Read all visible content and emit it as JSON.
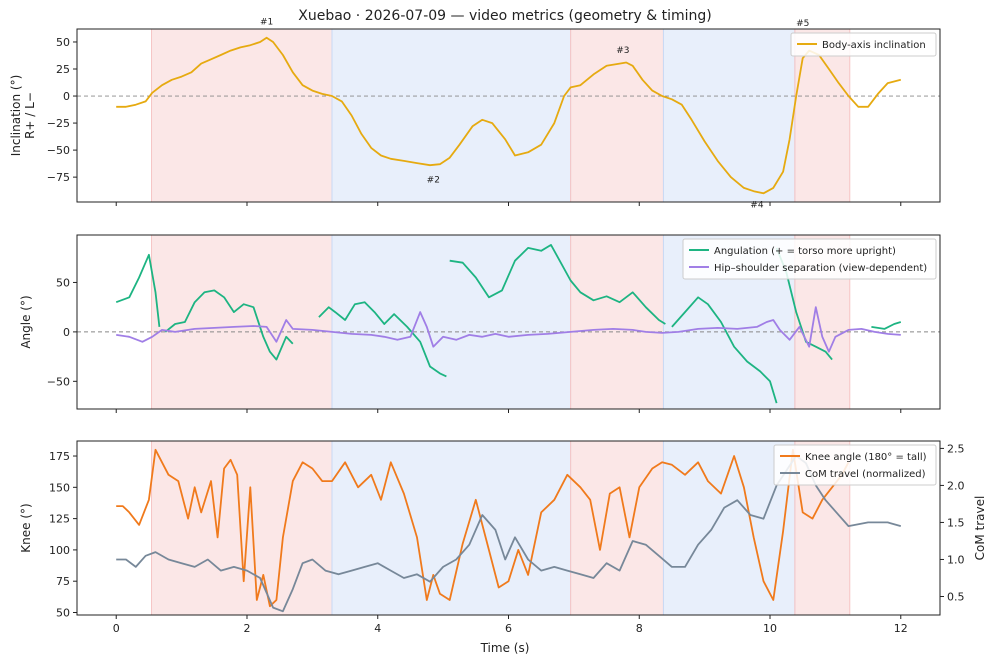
{
  "chart_data": {
    "type": "line",
    "title": "Xuebao · 2026-07-09 — video metrics (geometry & timing)",
    "xlabel": "Time (s)",
    "xlim": [
      -0.6,
      12.6
    ],
    "xticks": [
      0,
      2,
      4,
      6,
      8,
      10,
      12
    ],
    "phases": [
      {
        "start": 0.54,
        "end": 3.3,
        "color": "#f6c5c5"
      },
      {
        "start": 3.3,
        "end": 6.95,
        "color": "#c9daf5"
      },
      {
        "start": 6.95,
        "end": 8.37,
        "color": "#f6c5c5"
      },
      {
        "start": 8.37,
        "end": 10.38,
        "color": "#c9daf5"
      },
      {
        "start": 10.38,
        "end": 11.22,
        "color": "#f6c5c5"
      }
    ],
    "panels": [
      {
        "id": "inclination",
        "ylabel": [
          "Inclination (°)",
          "R+ / L−"
        ],
        "ylim": [
          -98,
          62
        ],
        "yticks": [
          50,
          25,
          0,
          -25,
          -50,
          -75
        ],
        "ytick_labels": [
          "50",
          "25",
          "0",
          "−25",
          "−50",
          "−75"
        ],
        "zero_line": true,
        "legend": "top-right",
        "annotations": [
          {
            "text": "#1",
            "x": 2.3,
            "y": 66
          },
          {
            "text": "#2",
            "x": 4.85,
            "y": -80
          },
          {
            "text": "#3",
            "x": 7.75,
            "y": 40
          },
          {
            "text": "#4",
            "x": 9.8,
            "y": -103
          },
          {
            "text": "#5",
            "x": 10.5,
            "y": 65
          }
        ],
        "series": [
          {
            "name": "Body-axis inclination",
            "color": "#e6aa10",
            "x": [
              0,
              0.15,
              0.3,
              0.45,
              0.55,
              0.7,
              0.85,
              1.0,
              1.15,
              1.3,
              1.45,
              1.6,
              1.75,
              1.9,
              2.05,
              2.2,
              2.3,
              2.4,
              2.55,
              2.7,
              2.85,
              3.0,
              3.15,
              3.3,
              3.45,
              3.6,
              3.75,
              3.9,
              4.05,
              4.2,
              4.4,
              4.6,
              4.8,
              4.95,
              5.1,
              5.25,
              5.45,
              5.6,
              5.75,
              5.95,
              6.1,
              6.3,
              6.5,
              6.7,
              6.85,
              6.95,
              7.1,
              7.3,
              7.5,
              7.7,
              7.8,
              7.9,
              8.05,
              8.2,
              8.35,
              8.5,
              8.65,
              8.8,
              9.0,
              9.2,
              9.4,
              9.6,
              9.75,
              9.9,
              10.05,
              10.2,
              10.3,
              10.4,
              10.5,
              10.6,
              10.75,
              10.9,
              11.05,
              11.2,
              11.35,
              11.5,
              11.65,
              11.8,
              12.0
            ],
            "y": [
              -10,
              -10,
              -8,
              -5,
              3,
              10,
              15,
              18,
              22,
              30,
              34,
              38,
              42,
              45,
              47,
              50,
              54,
              50,
              38,
              22,
              10,
              5,
              2,
              0,
              -5,
              -18,
              -35,
              -48,
              -55,
              -58,
              -60,
              -62,
              -64,
              -63,
              -57,
              -45,
              -28,
              -22,
              -25,
              -40,
              -55,
              -52,
              -45,
              -25,
              0,
              8,
              10,
              20,
              28,
              30,
              31,
              28,
              15,
              5,
              0,
              -3,
              -8,
              -22,
              -42,
              -60,
              -75,
              -85,
              -88,
              -90,
              -85,
              -70,
              -40,
              0,
              35,
              42,
              38,
              25,
              12,
              0,
              -10,
              -10,
              2,
              12,
              15
            ]
          }
        ]
      },
      {
        "id": "angle",
        "ylabel": [
          "Angle (°)"
        ],
        "ylim": [
          -78,
          98
        ],
        "yticks": [
          50,
          0,
          -50
        ],
        "ytick_labels": [
          "50",
          "0",
          "−50"
        ],
        "zero_line": true,
        "legend": "top-right",
        "series": [
          {
            "name": "Angulation (+ = torso more upright)",
            "color": "#1db482",
            "segments": [
              {
                "x": [
                  0,
                  0.2,
                  0.35,
                  0.5,
                  0.6,
                  0.66
                ],
                "y": [
                  30,
                  35,
                  55,
                  78,
                  40,
                  5
                ]
              },
              {
                "x": [
                  0.75,
                  0.9,
                  1.05,
                  1.2,
                  1.35,
                  1.5,
                  1.65,
                  1.8,
                  1.95,
                  2.1,
                  2.25,
                  2.35,
                  2.45,
                  2.6,
                  2.7
                ],
                "y": [
                  0,
                  8,
                  10,
                  30,
                  40,
                  42,
                  35,
                  20,
                  28,
                  25,
                  -5,
                  -20,
                  -28,
                  -5,
                  -12
                ]
              },
              {
                "x": [
                  3.1,
                  3.25,
                  3.35,
                  3.5,
                  3.65,
                  3.8,
                  3.95,
                  4.1,
                  4.25,
                  4.45,
                  4.65,
                  4.8,
                  4.95,
                  5.05
                ],
                "y": [
                  15,
                  25,
                  20,
                  12,
                  28,
                  30,
                  20,
                  8,
                  18,
                  5,
                  -10,
                  -35,
                  -42,
                  -45
                ]
              },
              {
                "x": [
                  5.1,
                  5.3,
                  5.5,
                  5.7,
                  5.9,
                  6.1,
                  6.3,
                  6.5,
                  6.65,
                  6.8,
                  6.95,
                  7.1,
                  7.3,
                  7.5,
                  7.7,
                  7.9,
                  8.1,
                  8.3,
                  8.4
                ],
                "y": [
                  72,
                  70,
                  55,
                  35,
                  42,
                  72,
                  85,
                  82,
                  88,
                  70,
                  52,
                  40,
                  32,
                  36,
                  30,
                  40,
                  25,
                  12,
                  8
                ]
              },
              {
                "x": [
                  8.5,
                  8.7,
                  8.9,
                  9.05,
                  9.25,
                  9.45,
                  9.65,
                  9.85,
                  10.0,
                  10.1
                ],
                "y": [
                  5,
                  20,
                  35,
                  28,
                  10,
                  -15,
                  -30,
                  -40,
                  -50,
                  -72
                ]
              },
              {
                "x": [
                  10.1,
                  10.25,
                  10.4,
                  10.55,
                  10.7,
                  10.85,
                  10.95
                ],
                "y": [
                  85,
                  60,
                  20,
                  -10,
                  -15,
                  -20,
                  -28
                ]
              },
              {
                "x": [
                  11.55,
                  11.75,
                  11.9,
                  12.0
                ],
                "y": [
                  5,
                  3,
                  8,
                  10
                ]
              }
            ]
          },
          {
            "name": "Hip–shoulder separation (view-dependent)",
            "color": "#a07ee6",
            "segments": [
              {
                "x": [
                  0,
                  0.2,
                  0.4,
                  0.55,
                  0.7,
                  0.9,
                  1.2,
                  1.5,
                  1.8,
                  2.1,
                  2.3,
                  2.45,
                  2.6,
                  2.7,
                  3.0,
                  3.3,
                  3.6,
                  3.9,
                  4.1,
                  4.3,
                  4.5,
                  4.65,
                  4.75,
                  4.85,
                  5.0,
                  5.2,
                  5.4,
                  5.6,
                  5.8,
                  6.0,
                  6.3,
                  6.6,
                  6.95,
                  7.3,
                  7.6,
                  7.9,
                  8.1,
                  8.35,
                  8.6,
                  8.9,
                  9.2,
                  9.5,
                  9.8,
                  9.95,
                  10.05,
                  10.15,
                  10.3,
                  10.45,
                  10.6,
                  10.7,
                  10.8,
                  10.9,
                  11.0,
                  11.2,
                  11.4,
                  11.6,
                  11.8,
                  12.0
                ],
                "y": [
                  -3,
                  -5,
                  -10,
                  -5,
                  2,
                  0,
                  3,
                  4,
                  5,
                  6,
                  5,
                  -10,
                  12,
                  3,
                  2,
                  0,
                  -2,
                  -3,
                  -5,
                  -8,
                  -5,
                  20,
                  5,
                  -15,
                  -5,
                  -8,
                  -3,
                  -5,
                  -2,
                  -5,
                  -3,
                  -2,
                  0,
                  2,
                  3,
                  2,
                  0,
                  -1,
                  0,
                  3,
                  4,
                  3,
                  5,
                  10,
                  12,
                  2,
                  -8,
                  5,
                  -15,
                  25,
                  -5,
                  -20,
                  -5,
                  2,
                  3,
                  0,
                  -2,
                  -3
                ]
              }
            ]
          }
        ]
      },
      {
        "id": "knee",
        "ylabel": [
          "Knee (°)"
        ],
        "ylim": [
          48,
          187
        ],
        "yticks": [
          175,
          150,
          125,
          100,
          75,
          50
        ],
        "ytick_labels": [
          "175",
          "150",
          "125",
          "100",
          "75",
          "50"
        ],
        "y2label": "CoM travel",
        "y2lim": [
          0.25,
          2.6
        ],
        "y2ticks": [
          0.5,
          1.0,
          1.5,
          2.0,
          2.5
        ],
        "y2tick_labels": [
          "0.5",
          "1.0",
          "1.5",
          "2.0",
          "2.5"
        ],
        "legend": "top-right",
        "series": [
          {
            "name": "Knee angle (180° = tall)",
            "color": "#f07a1c",
            "axis": "y",
            "x": [
              0,
              0.1,
              0.2,
              0.35,
              0.5,
              0.6,
              0.7,
              0.8,
              0.95,
              1.1,
              1.2,
              1.3,
              1.45,
              1.55,
              1.65,
              1.75,
              1.85,
              1.95,
              2.05,
              2.15,
              2.25,
              2.35,
              2.45,
              2.55,
              2.7,
              2.85,
              3.0,
              3.15,
              3.3,
              3.5,
              3.7,
              3.9,
              4.05,
              4.2,
              4.4,
              4.6,
              4.75,
              4.85,
              4.95,
              5.1,
              5.3,
              5.5,
              5.7,
              5.85,
              6.0,
              6.15,
              6.3,
              6.5,
              6.7,
              6.9,
              7.1,
              7.25,
              7.4,
              7.55,
              7.7,
              7.85,
              8.0,
              8.2,
              8.35,
              8.5,
              8.7,
              8.9,
              9.05,
              9.25,
              9.45,
              9.6,
              9.75,
              9.9,
              10.05,
              10.2,
              10.35,
              10.5,
              10.65,
              10.8,
              10.95,
              11.1,
              11.2
            ],
            "y": [
              135,
              135,
              130,
              120,
              140,
              180,
              170,
              160,
              155,
              125,
              150,
              130,
              155,
              110,
              165,
              172,
              160,
              75,
              150,
              60,
              80,
              55,
              60,
              110,
              155,
              170,
              165,
              155,
              155,
              170,
              150,
              160,
              140,
              170,
              145,
              110,
              60,
              80,
              65,
              60,
              105,
              140,
              100,
              70,
              75,
              100,
              80,
              130,
              140,
              160,
              150,
              140,
              100,
              145,
              150,
              110,
              150,
              165,
              170,
              168,
              160,
              170,
              155,
              145,
              175,
              150,
              110,
              75,
              60,
              115,
              180,
              130,
              125,
              140,
              150,
              160,
              170
            ]
          },
          {
            "name": "CoM travel (normalized)",
            "color": "#778899",
            "axis": "y2",
            "x": [
              0,
              0.15,
              0.3,
              0.45,
              0.6,
              0.8,
              1.0,
              1.2,
              1.4,
              1.6,
              1.8,
              2.0,
              2.2,
              2.4,
              2.55,
              2.7,
              2.85,
              3.0,
              3.2,
              3.4,
              3.6,
              3.8,
              4.0,
              4.2,
              4.4,
              4.6,
              4.8,
              5.0,
              5.2,
              5.4,
              5.6,
              5.8,
              5.95,
              6.1,
              6.3,
              6.5,
              6.7,
              6.9,
              7.1,
              7.3,
              7.5,
              7.7,
              7.9,
              8.1,
              8.3,
              8.5,
              8.7,
              8.9,
              9.1,
              9.3,
              9.5,
              9.7,
              9.9,
              10.1,
              10.25,
              10.4,
              10.55,
              10.7,
              10.85,
              11.0,
              11.2,
              11.5,
              11.8,
              12.0
            ],
            "y": [
              1.0,
              1.0,
              0.9,
              1.05,
              1.1,
              1.0,
              0.95,
              0.9,
              1.0,
              0.85,
              0.9,
              0.85,
              0.75,
              0.35,
              0.3,
              0.6,
              0.95,
              1.0,
              0.85,
              0.8,
              0.85,
              0.9,
              0.95,
              0.85,
              0.75,
              0.8,
              0.7,
              0.9,
              1.0,
              1.2,
              1.6,
              1.4,
              1.0,
              1.3,
              1.0,
              0.85,
              0.9,
              0.85,
              0.8,
              0.75,
              0.95,
              0.85,
              1.25,
              1.2,
              1.05,
              0.9,
              0.9,
              1.2,
              1.4,
              1.7,
              1.8,
              1.6,
              1.55,
              2.0,
              2.2,
              2.4,
              2.3,
              2.0,
              1.8,
              1.65,
              1.45,
              1.5,
              1.5,
              1.45
            ]
          }
        ]
      }
    ]
  }
}
